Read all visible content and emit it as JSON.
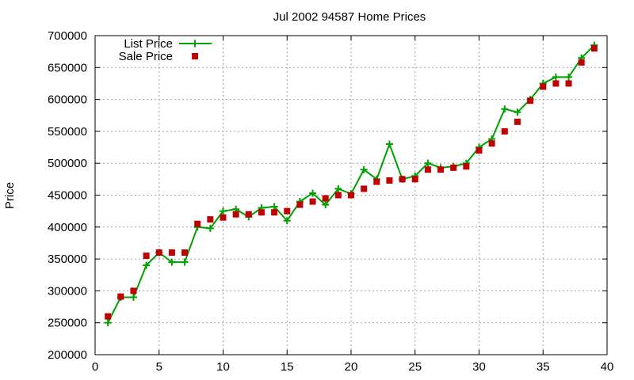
{
  "chart_data": {
    "type": "scatter",
    "title": "Jul 2002 94587 Home Prices",
    "xlabel": "",
    "ylabel": "Price",
    "xlim": [
      0,
      40
    ],
    "ylim": [
      200000,
      700000
    ],
    "xticks": [
      0,
      5,
      10,
      15,
      20,
      25,
      30,
      35,
      40
    ],
    "yticks": [
      200000,
      250000,
      300000,
      350000,
      400000,
      450000,
      500000,
      550000,
      600000,
      650000,
      700000
    ],
    "grid": true,
    "legend": "top-left",
    "series": [
      {
        "name": "List Price",
        "style": "linespoints",
        "color": "#00a000",
        "x": [
          1,
          2,
          3,
          4,
          5,
          6,
          7,
          8,
          9,
          10,
          11,
          12,
          13,
          14,
          15,
          16,
          17,
          18,
          19,
          20,
          21,
          22,
          23,
          24,
          25,
          26,
          27,
          28,
          29,
          30,
          31,
          32,
          33,
          34,
          35,
          36,
          37,
          38,
          39
        ],
        "y": [
          250000,
          290000,
          290000,
          340000,
          360000,
          345000,
          345000,
          400000,
          398000,
          425000,
          428000,
          416000,
          430000,
          432000,
          410000,
          440000,
          453000,
          435000,
          460000,
          452000,
          490000,
          475000,
          530000,
          475000,
          480000,
          500000,
          493000,
          495000,
          500000,
          525000,
          538000,
          585000,
          580000,
          600000,
          625000,
          635000,
          635000,
          665000,
          685000
        ]
      },
      {
        "name": "Sale Price",
        "style": "points",
        "color": "#c00000",
        "x": [
          1,
          2,
          3,
          4,
          5,
          6,
          7,
          8,
          9,
          10,
          11,
          12,
          13,
          14,
          15,
          16,
          17,
          18,
          19,
          20,
          21,
          22,
          23,
          24,
          25,
          26,
          27,
          28,
          29,
          30,
          31,
          32,
          33,
          34,
          35,
          36,
          37,
          38,
          39
        ],
        "y": [
          260000,
          291000,
          300000,
          355000,
          360000,
          360000,
          360000,
          405000,
          412000,
          415000,
          420000,
          420000,
          423000,
          423000,
          425000,
          435000,
          440000,
          445000,
          450000,
          450000,
          460000,
          471000,
          473000,
          475000,
          475000,
          490000,
          490000,
          493000,
          495000,
          520000,
          531000,
          550000,
          565000,
          598000,
          620000,
          625000,
          625000,
          658000,
          680000
        ]
      }
    ]
  }
}
